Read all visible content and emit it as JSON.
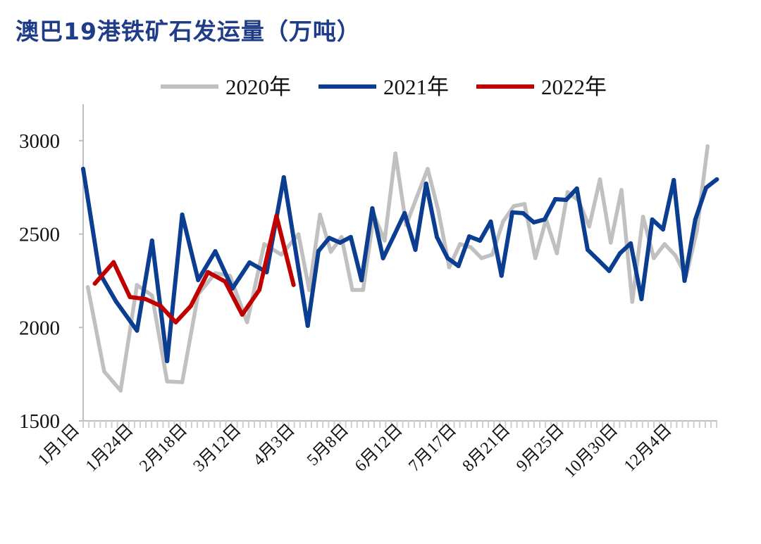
{
  "chart_data": {
    "type": "line",
    "title": "澳巴19港铁矿石发运量（万吨）",
    "xlabel": "",
    "ylabel": "",
    "ylim": [
      1500,
      3200
    ],
    "yticks": [
      1500,
      2000,
      2500,
      3000
    ],
    "xtick_labels": [
      "1月1日",
      "1月24日",
      "2月18日",
      "3月12日",
      "4月3日",
      "5月8日",
      "6月12日",
      "7月17日",
      "8月21日",
      "9月25日",
      "10月30日",
      "12月4日"
    ],
    "grid": false,
    "legend_position": "top",
    "series": [
      {
        "name": "2020年",
        "color": "#c0c0c0",
        "points": [
          [
            "1/3",
            2216
          ],
          [
            "1/10",
            1764
          ],
          [
            "1/17",
            1662
          ],
          [
            "1/24",
            2227
          ],
          [
            "1/31",
            2171
          ],
          [
            "2/7",
            1711
          ],
          [
            "2/14",
            1707
          ],
          [
            "2/21",
            2178
          ],
          [
            "2/28",
            2291
          ],
          [
            "3/6",
            2276
          ],
          [
            "3/13",
            2028
          ],
          [
            "3/20",
            2446
          ],
          [
            "3/27",
            2390
          ],
          [
            "4/3",
            2499
          ],
          [
            "4/10",
            2200
          ],
          [
            "4/17",
            2604
          ],
          [
            "4/24",
            2405
          ],
          [
            "5/1",
            2484
          ],
          [
            "5/8",
            2201
          ],
          [
            "5/15",
            2201
          ],
          [
            "5/22",
            2604
          ],
          [
            "5/29",
            2465
          ],
          [
            "6/5",
            2932
          ],
          [
            "6/12",
            2548
          ],
          [
            "6/19",
            2700
          ],
          [
            "6/26",
            2849
          ],
          [
            "7/3",
            2623
          ],
          [
            "7/10",
            2322
          ],
          [
            "7/17",
            2446
          ],
          [
            "7/24",
            2430
          ],
          [
            "7/31",
            2371
          ],
          [
            "8/7",
            2390
          ],
          [
            "8/14",
            2567
          ],
          [
            "8/21",
            2650
          ],
          [
            "8/28",
            2661
          ],
          [
            "9/4",
            2371
          ],
          [
            "9/11",
            2578
          ],
          [
            "9/18",
            2397
          ],
          [
            "9/25",
            2725
          ],
          [
            "10/2",
            2680
          ],
          [
            "10/9",
            2540
          ],
          [
            "10/16",
            2793
          ],
          [
            "10/23",
            2454
          ],
          [
            "10/30",
            2736
          ],
          [
            "11/6",
            2137
          ],
          [
            "11/13",
            2593
          ],
          [
            "11/20",
            2371
          ],
          [
            "11/27",
            2446
          ],
          [
            "12/4",
            2386
          ],
          [
            "12/11",
            2273
          ],
          [
            "12/18",
            2518
          ],
          [
            "12/25",
            2970
          ]
        ]
      },
      {
        "name": "2021年",
        "color": "#0b3d91",
        "points": [
          [
            "1/1",
            2849
          ],
          [
            "1/8",
            2292
          ],
          [
            "1/15",
            2140
          ],
          [
            "1/24",
            1983
          ],
          [
            "1/31",
            2465
          ],
          [
            "2/7",
            1820
          ],
          [
            "2/14",
            2604
          ],
          [
            "2/21",
            2254
          ],
          [
            "2/28",
            2408
          ],
          [
            "3/7",
            2209
          ],
          [
            "3/14",
            2348
          ],
          [
            "3/21",
            2296
          ],
          [
            "3/28",
            2804
          ],
          [
            "4/9",
            2009
          ],
          [
            "4/16",
            2409
          ],
          [
            "4/23",
            2479
          ],
          [
            "4/30",
            2454
          ],
          [
            "5/7",
            2484
          ],
          [
            "5/14",
            2253
          ],
          [
            "5/21",
            2638
          ],
          [
            "5/28",
            2371
          ],
          [
            "6/4",
            2490
          ],
          [
            "6/11",
            2612
          ],
          [
            "6/18",
            2416
          ],
          [
            "6/25",
            2770
          ],
          [
            "7/2",
            2484
          ],
          [
            "7/9",
            2371
          ],
          [
            "7/16",
            2329
          ],
          [
            "7/23",
            2487
          ],
          [
            "7/30",
            2465
          ],
          [
            "8/6",
            2567
          ],
          [
            "8/13",
            2277
          ],
          [
            "8/20",
            2616
          ],
          [
            "8/27",
            2612
          ],
          [
            "9/3",
            2563
          ],
          [
            "9/10",
            2578
          ],
          [
            "9/17",
            2687
          ],
          [
            "9/24",
            2683
          ],
          [
            "10/1",
            2744
          ],
          [
            "10/8",
            2416
          ],
          [
            "10/15",
            2360
          ],
          [
            "10/22",
            2303
          ],
          [
            "10/29",
            2397
          ],
          [
            "11/5",
            2450
          ],
          [
            "11/12",
            2152
          ],
          [
            "11/19",
            2578
          ],
          [
            "11/26",
            2525
          ],
          [
            "12/3",
            2789
          ],
          [
            "12/10",
            2250
          ],
          [
            "12/17",
            2578
          ],
          [
            "12/24",
            2748
          ],
          [
            "12/31",
            2793
          ]
        ]
      },
      {
        "name": "2022年",
        "color": "#c00000",
        "points": [
          [
            "1/6",
            2235
          ],
          [
            "1/14",
            2349
          ],
          [
            "1/21",
            2163
          ],
          [
            "1/28",
            2152
          ],
          [
            "2/4",
            2115
          ],
          [
            "2/11",
            2028
          ],
          [
            "2/18",
            2115
          ],
          [
            "2/25",
            2296
          ],
          [
            "3/4",
            2246
          ],
          [
            "3/11",
            2069
          ],
          [
            "3/18",
            2201
          ],
          [
            "3/25",
            2597
          ],
          [
            "4/1",
            2228
          ]
        ]
      }
    ]
  }
}
